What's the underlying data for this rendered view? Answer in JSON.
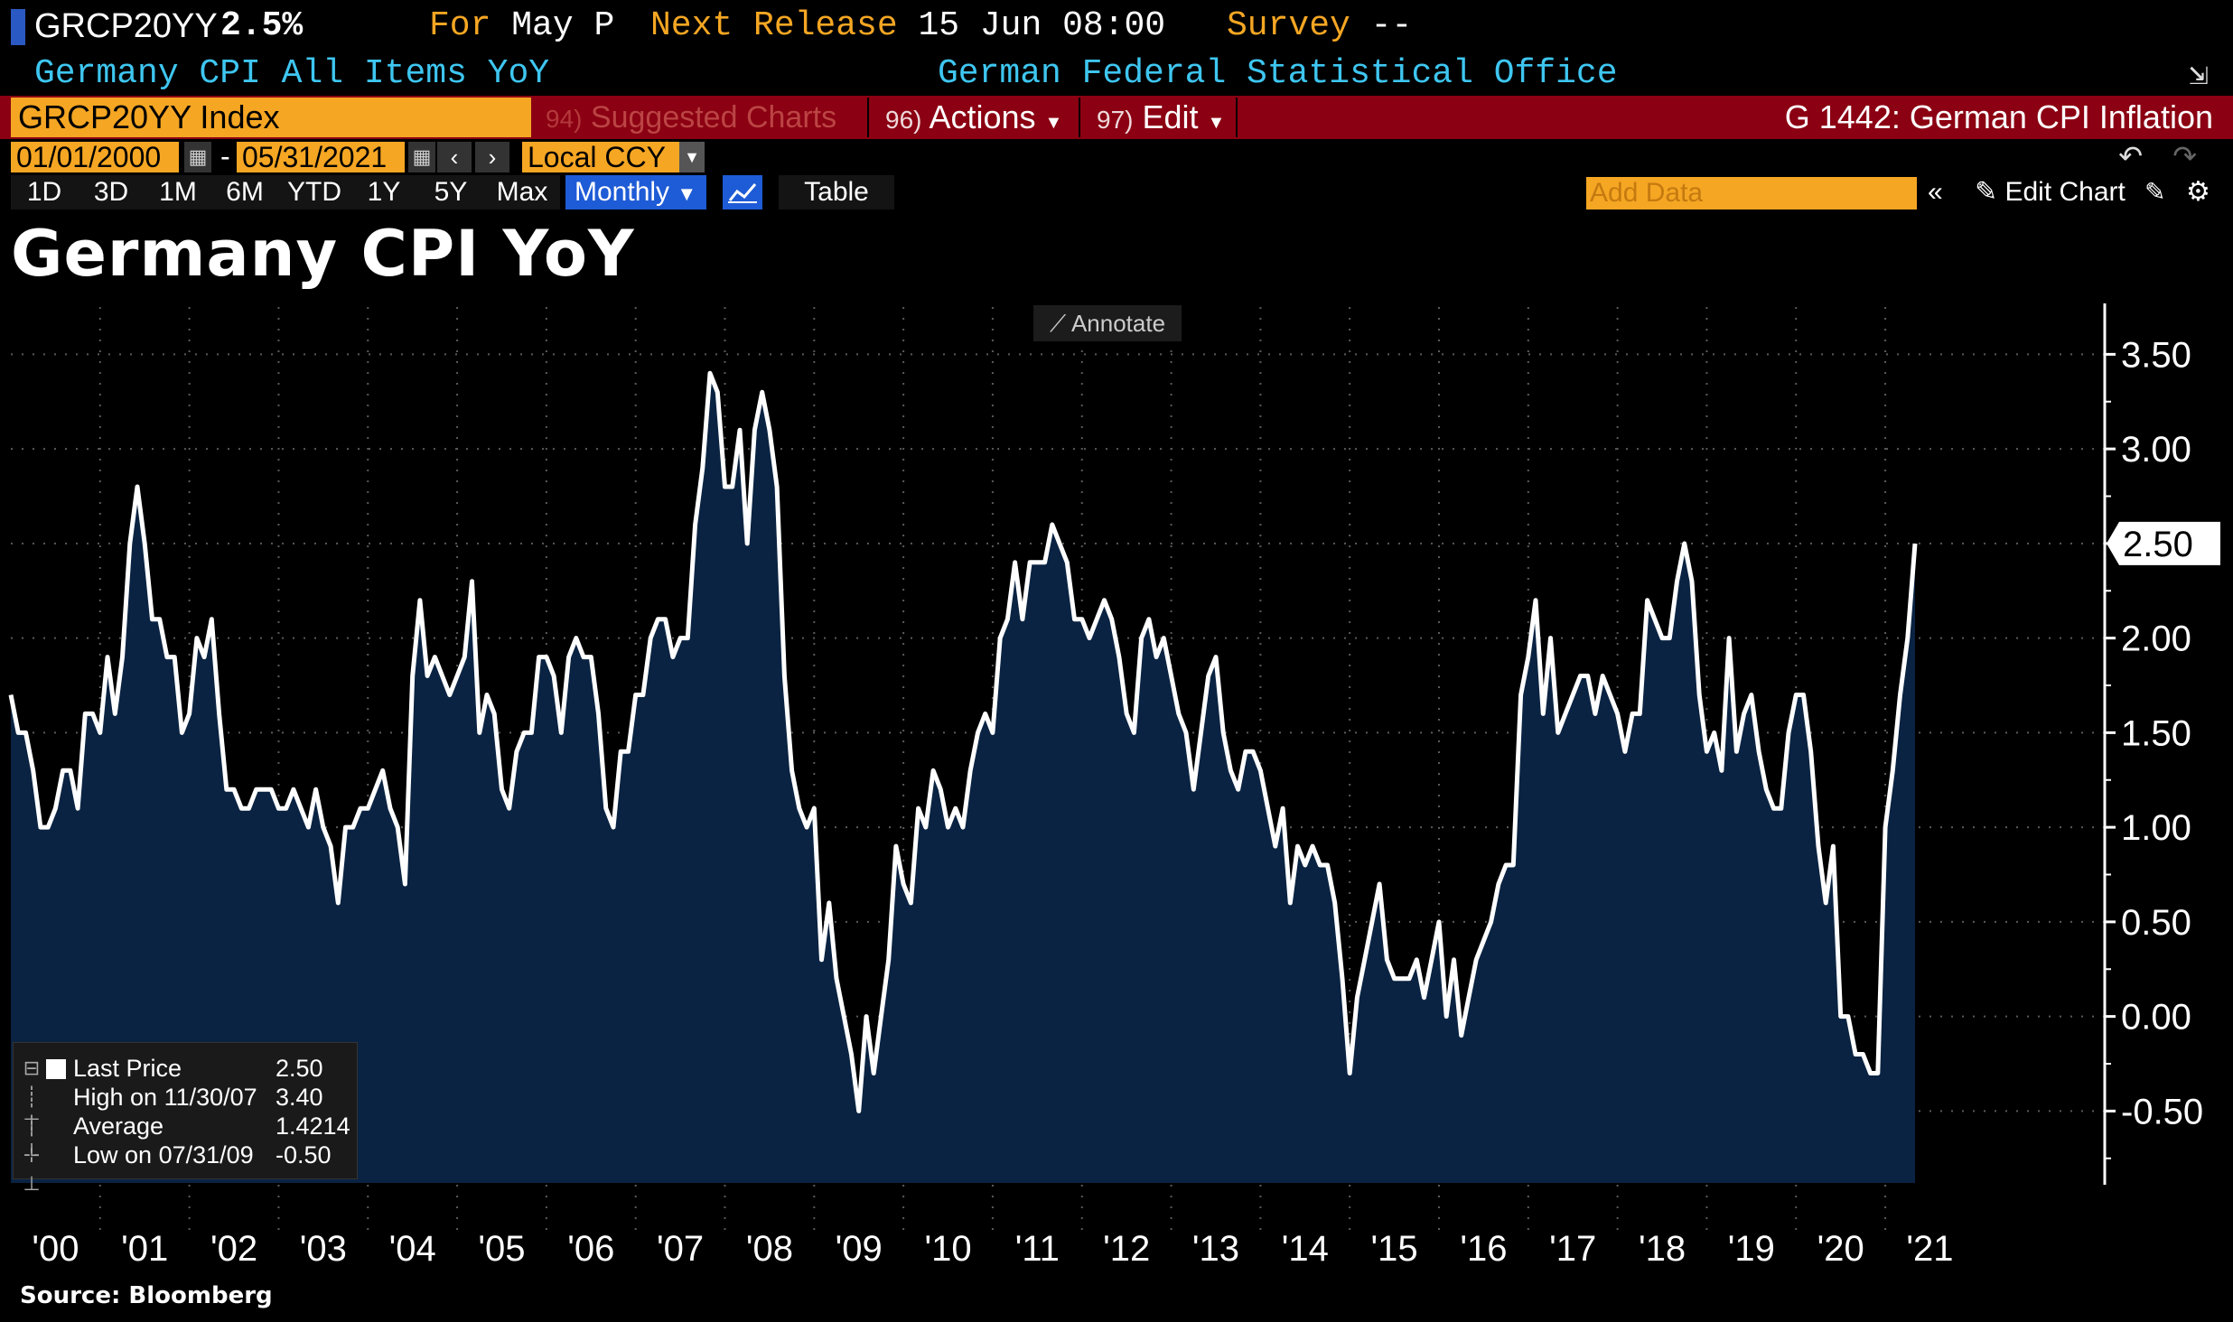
{
  "header": {
    "ticker_code": "GRCP20YY",
    "last_value": "2.5%",
    "for_label": "For",
    "for_value": "May P",
    "next_release_label": "Next Release",
    "next_release_value": "15 Jun 08:00",
    "survey_label": "Survey",
    "survey_value": "--",
    "subtitle": "Germany CPI All Items YoY",
    "source_agency": "German Federal Statistical Office"
  },
  "toolbar": {
    "security": "GRCP20YY Index",
    "suggested_num": "94)",
    "suggested_label": "Suggested Charts",
    "actions_num": "96)",
    "actions_label": "Actions",
    "edit_num": "97)",
    "edit_label": "Edit",
    "function_title": "G 1442: German CPI Inflation"
  },
  "range": {
    "start_date": "01/01/2000",
    "end_date": "05/31/2021",
    "separator": "-",
    "currency": "Local CCY"
  },
  "periods": [
    "1D",
    "3D",
    "1M",
    "6M",
    "YTD",
    "1Y",
    "5Y",
    "Max"
  ],
  "frequency": "Monthly",
  "table_label": "Table",
  "add_data_placeholder": "Add Data",
  "edit_chart_label": "Edit Chart",
  "annotate_label": "Annotate",
  "legend": {
    "last_price_label": "Last Price",
    "last_price_value": "2.50",
    "high_label": "High on 11/30/07",
    "high_value": "3.40",
    "average_label": "Average",
    "average_value": "1.4214",
    "low_label": "Low on 07/31/09",
    "low_value": "-0.50"
  },
  "source": "Source: Bloomberg",
  "colors": {
    "accent_orange": "#f5a623",
    "toolbar_red": "#8b0012",
    "subtitle_blue": "#3ec6f0",
    "area_fill": "#0a2342",
    "line": "#ffffff"
  },
  "chart_data": {
    "type": "area",
    "title": "Germany CPI YoY",
    "frequency": "monthly",
    "x_start": "2000-01",
    "x_end": "2021-05",
    "x_tick_labels": [
      "'00",
      "'01",
      "'02",
      "'03",
      "'04",
      "'05",
      "'06",
      "'07",
      "'08",
      "'09",
      "'10",
      "'11",
      "'12",
      "'13",
      "'14",
      "'15",
      "'16",
      "'17",
      "'18",
      "'19",
      "'20",
      "'21"
    ],
    "y_tick_labels": [
      "3.50",
      "3.00",
      "2.50",
      "2.00",
      "1.50",
      "1.00",
      "0.50",
      "0.00",
      "-0.50"
    ],
    "ylim": [
      -0.88,
      3.75
    ],
    "last_value_label": "2.50",
    "series": [
      {
        "values": [
          1.7,
          1.5,
          1.5,
          1.3,
          1.0,
          1.0,
          1.1,
          1.3,
          1.3,
          1.1,
          1.6,
          1.6,
          1.5,
          1.9,
          1.6,
          1.9,
          2.5,
          2.8,
          2.5,
          2.1,
          2.1,
          1.9,
          1.9,
          1.5,
          1.6,
          2.0,
          1.9,
          2.1,
          1.6,
          1.2,
          1.2,
          1.1,
          1.1,
          1.2,
          1.2,
          1.2,
          1.1,
          1.1,
          1.2,
          1.1,
          1.0,
          1.2,
          1.0,
          0.9,
          0.6,
          1.0,
          1.0,
          1.1,
          1.1,
          1.2,
          1.3,
          1.1,
          1.0,
          0.7,
          1.8,
          2.2,
          1.8,
          1.9,
          1.8,
          1.7,
          1.8,
          1.9,
          2.3,
          1.5,
          1.7,
          1.6,
          1.2,
          1.1,
          1.4,
          1.5,
          1.5,
          1.9,
          1.9,
          1.8,
          1.5,
          1.9,
          2.0,
          1.9,
          1.9,
          1.6,
          1.1,
          1.0,
          1.4,
          1.4,
          1.7,
          1.7,
          2.0,
          2.1,
          2.1,
          1.9,
          2.0,
          2.0,
          2.6,
          2.9,
          3.4,
          3.3,
          2.8,
          2.8,
          3.1,
          2.5,
          3.1,
          3.3,
          3.1,
          2.8,
          1.8,
          1.3,
          1.1,
          1.0,
          1.1,
          0.3,
          0.6,
          0.2,
          0.0,
          -0.2,
          -0.5,
          0.0,
          -0.3,
          0.0,
          0.3,
          0.9,
          0.7,
          0.6,
          1.1,
          1.0,
          1.3,
          1.2,
          1.0,
          1.1,
          1.0,
          1.3,
          1.5,
          1.6,
          1.5,
          2.0,
          2.1,
          2.4,
          2.1,
          2.4,
          2.4,
          2.4,
          2.6,
          2.5,
          2.4,
          2.1,
          2.1,
          2.0,
          2.1,
          2.2,
          2.1,
          1.9,
          1.6,
          1.5,
          2.0,
          2.1,
          1.9,
          2.0,
          1.8,
          1.6,
          1.5,
          1.2,
          1.5,
          1.8,
          1.9,
          1.5,
          1.3,
          1.2,
          1.4,
          1.4,
          1.3,
          1.1,
          0.9,
          1.1,
          0.6,
          0.9,
          0.8,
          0.9,
          0.8,
          0.8,
          0.6,
          0.2,
          -0.3,
          0.1,
          0.3,
          0.5,
          0.7,
          0.3,
          0.2,
          0.2,
          0.2,
          0.3,
          0.1,
          0.3,
          0.5,
          0.0,
          0.3,
          -0.1,
          0.1,
          0.3,
          0.4,
          0.5,
          0.7,
          0.8,
          0.8,
          1.7,
          1.9,
          2.2,
          1.6,
          2.0,
          1.5,
          1.6,
          1.7,
          1.8,
          1.8,
          1.6,
          1.8,
          1.7,
          1.6,
          1.4,
          1.6,
          1.6,
          2.2,
          2.1,
          2.0,
          2.0,
          2.3,
          2.5,
          2.3,
          1.7,
          1.4,
          1.5,
          1.3,
          2.0,
          1.4,
          1.6,
          1.7,
          1.4,
          1.2,
          1.1,
          1.1,
          1.5,
          1.7,
          1.7,
          1.4,
          0.9,
          0.6,
          0.9,
          0.0,
          0.0,
          -0.2,
          -0.2,
          -0.3,
          -0.3,
          1.0,
          1.3,
          1.7,
          2.0,
          2.5
        ]
      }
    ]
  }
}
